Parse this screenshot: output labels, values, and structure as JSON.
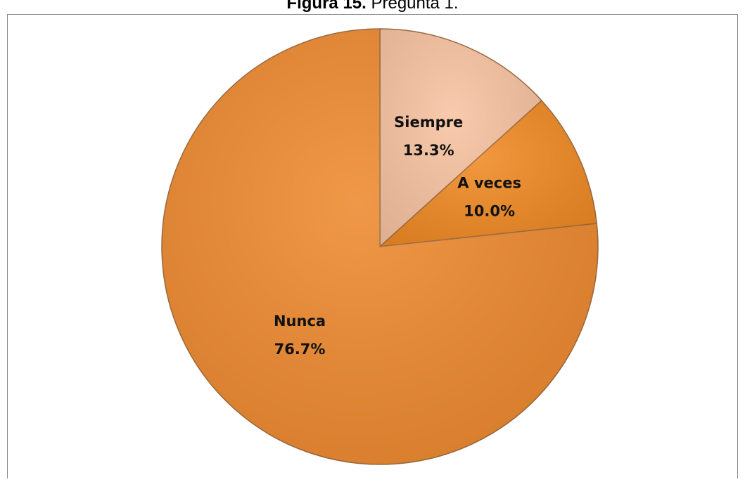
{
  "chart_data": {
    "type": "pie",
    "figure_label": "Figura 15.",
    "title": "Pregunta 1.",
    "categories": [
      "Siempre",
      "A veces",
      "Nunca"
    ],
    "values": [
      13.3,
      10.0,
      76.7
    ],
    "value_labels": [
      "13.3%",
      "10.0%",
      "76.7%"
    ],
    "colors": [
      "#f9c3a2",
      "#f08a24",
      "#ee8a30"
    ]
  }
}
